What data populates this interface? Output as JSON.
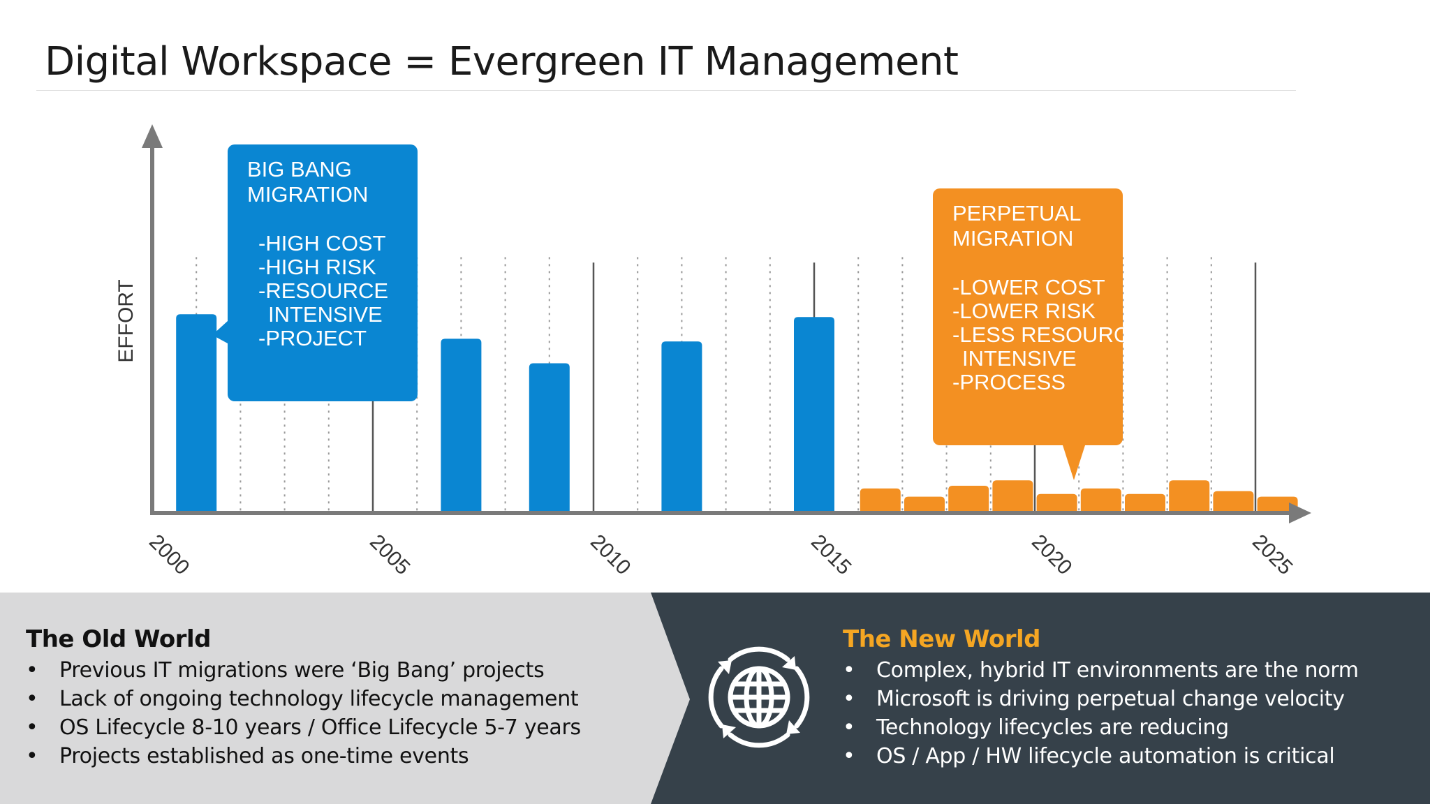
{
  "slide": {
    "title": "Digital Workspace = Evergreen IT Management"
  },
  "chart_data": {
    "type": "bar",
    "ylabel": "EFFORT",
    "xlabel": "",
    "x_ticks": [
      "2000",
      "2005",
      "2010",
      "2015",
      "2020",
      "2025"
    ],
    "x_range": [
      2000,
      2026
    ],
    "ylim": [
      0,
      100
    ],
    "series": [
      {
        "color": "#0a86d2",
        "x": [
          2001,
          2007,
          2009,
          2012,
          2015
        ],
        "values": [
          73,
          64,
          55,
          63,
          72
        ]
      },
      {
        "color": "#f39022",
        "x": [
          2016.5,
          2017.5,
          2018.5,
          2019.5,
          2020.5,
          2021.5,
          2022.5,
          2023.5,
          2024.5,
          2025.5
        ],
        "values": [
          9,
          6,
          10,
          12,
          7,
          9,
          7,
          12,
          8,
          6
        ]
      }
    ],
    "annotations": [
      {
        "color": "#0a86d2",
        "lines": [
          "BIG BANG",
          "MIGRATION",
          "",
          "-HIGH COST",
          "-HIGH RISK",
          "-RESOURCE",
          "INTENSIVE",
          "-PROJECT"
        ]
      },
      {
        "color": "#f39022",
        "lines": [
          "PERPETUAL",
          "MIGRATION",
          "",
          "-LOWER COST",
          "-LOWER RISK",
          "-LESS RESOURCE",
          "INTENSIVE",
          "-PROCESS"
        ]
      }
    ]
  },
  "old_world": {
    "heading": "The Old World",
    "bullet": "•",
    "items": [
      "Previous IT migrations were ‘Big Bang’ projects",
      "Lack of ongoing technology lifecycle management",
      "OS Lifecycle 8-10 years / Office Lifecycle 5-7 years",
      "Projects established as one-time events"
    ],
    "color": "#d9d9da"
  },
  "new_world": {
    "heading": "The New World",
    "bullet": "•",
    "items": [
      "Complex, hybrid IT environments are the norm",
      "Microsoft is driving perpetual change velocity",
      "Technology lifecycles are reducing",
      "OS / App / HW lifecycle automation is critical"
    ],
    "color": "#36414a",
    "accent": "#f5a623",
    "icon": "globe-cycle-icon"
  }
}
